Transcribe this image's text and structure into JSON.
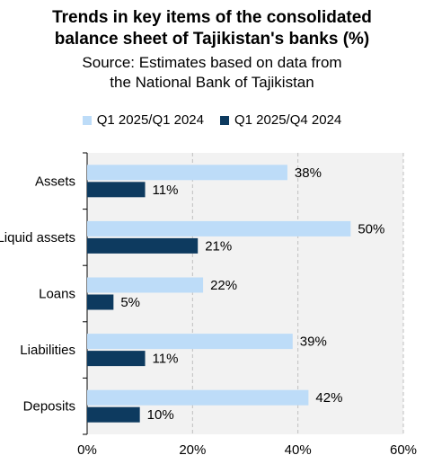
{
  "title_line1": "Trends in key items of the consolidated",
  "title_line2": "balance sheet of Tajikistan's banks (%)",
  "subtitle_line1": "Source: Estimates based on data from",
  "subtitle_line2": "the National Bank of Tajikistan",
  "colors": {
    "series1": "#bddcf8",
    "series2": "#0d3a5f",
    "plot_bg": "#f2f2f2",
    "grid": "#bfbfbf"
  },
  "chart_data": {
    "type": "bar",
    "orientation": "horizontal",
    "categories": [
      "Assets",
      "Liquid assets",
      "Loans",
      "Liabilities",
      "Deposits"
    ],
    "series": [
      {
        "name": "Q1 2025/Q1 2024",
        "values": [
          38,
          50,
          22,
          39,
          42
        ],
        "labels": [
          "38%",
          "50%",
          "22%",
          "39%",
          "42%"
        ]
      },
      {
        "name": "Q1 2025/Q4 2024",
        "values": [
          11,
          21,
          5,
          11,
          10
        ],
        "labels": [
          "11%",
          "21%",
          "5%",
          "11%",
          "10%"
        ]
      }
    ],
    "xlim": [
      0,
      60
    ],
    "xticks": [
      0,
      20,
      40,
      60
    ],
    "xtick_labels": [
      "0%",
      "20%",
      "40%",
      "60%"
    ],
    "grid": "vertical dashed",
    "legend_position": "top"
  }
}
